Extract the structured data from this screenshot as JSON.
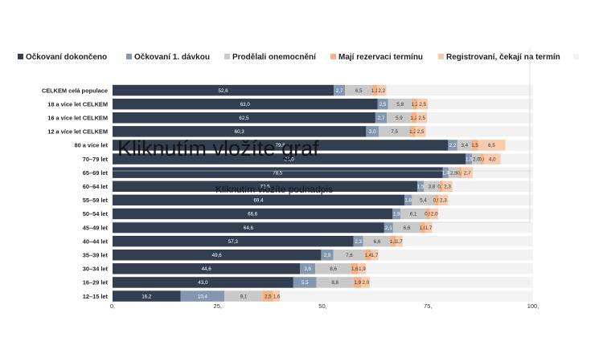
{
  "chart_data": {
    "type": "bar",
    "orientation": "horizontal",
    "stacked": true,
    "categories": [
      "CELKEM celá populace",
      "18 a více let CELKEM",
      "16 a více let CELKEM",
      "12 a více let CELKEM",
      "80 a více let",
      "70–79 let",
      "65–69 let",
      "60–64 let",
      "55–59 let",
      "50–54 let",
      "45–49 let",
      "40–44 let",
      "35–39 let",
      "30–34 let",
      "16–29 let",
      "12–15 let"
    ],
    "series": [
      {
        "name": "Očkovaní dokončeno",
        "color": "#333f50",
        "values": [
          52.6,
          63.0,
          62.5,
          60.3,
          79.8,
          84.0,
          78.5,
          72.5,
          69.4,
          66.6,
          64.6,
          57.3,
          49.6,
          44.6,
          43.0,
          16.2
        ],
        "labels": [
          "52,6",
          "63,0",
          "62,5",
          "60,3",
          "79,8",
          "84,0",
          "78,5",
          "72,5",
          "69,4",
          "66,6",
          "64,6",
          "57,3",
          "49,6",
          "44,6",
          "43,0",
          "16,2"
        ]
      },
      {
        "name": "Očkovaní 1. dávkou",
        "color": "#8497b0",
        "values": [
          2.7,
          2.5,
          2.7,
          3.0,
          2.2,
          1.5,
          1.4,
          1.5,
          1.8,
          1.9,
          2.1,
          2.3,
          2.9,
          3.6,
          5.5,
          10.4
        ],
        "labels": [
          "2,7",
          "2,5",
          "2,7",
          "3,0",
          "2,2",
          "1,5",
          "1,4",
          "1,5",
          "1,8",
          "1,9",
          "2,1",
          "2,3",
          "2,9",
          "3,6",
          "5,5",
          "10,4"
        ]
      },
      {
        "name": "Prodělali onemocnění",
        "color": "#c9c9c9",
        "values": [
          6.5,
          5.8,
          5.9,
          7.5,
          3.4,
          2.0,
          2.5,
          3.8,
          5.4,
          6.1,
          6.6,
          6.6,
          7.6,
          8.6,
          8.8,
          9.1
        ],
        "labels": [
          "6,5",
          "5,8",
          "5,9",
          "7,5",
          "3,4",
          "2,0",
          "2,5",
          "3,8",
          "5,4",
          "6,1",
          "6,6",
          "6,6",
          "7,6",
          "8,6",
          "8,8",
          "9,1"
        ]
      },
      {
        "name": "Mají rezervaci termínu",
        "color": "#f4b183",
        "values": [
          1.1,
          1.2,
          1.2,
          1.2,
          1.5,
          0.8,
          0.6,
          0.7,
          0.9,
          0.9,
          1.0,
          1.1,
          1.4,
          1.6,
          1.9,
          2.5
        ],
        "labels": [
          "1,1",
          "1,2",
          "1,2",
          "1,2",
          "1,5",
          "0,8",
          "0,6",
          "0,7",
          "0,9",
          "0,9",
          "1,0",
          "1,1",
          "1,4",
          "1,6",
          "1,9",
          "2,5"
        ]
      },
      {
        "name": "Registrovaní, čekají na termín",
        "color": "#f8cbad",
        "values": [
          2.2,
          2.5,
          2.5,
          2.5,
          6.5,
          4.0,
          2.7,
          2.3,
          2.3,
          2.0,
          1.7,
          1.7,
          1.7,
          1.9,
          2.0,
          1.6
        ],
        "labels": [
          "2,2",
          "2,5",
          "2,5",
          "2,5",
          "6,5",
          "4,0",
          "2,7",
          "2,3",
          "2,3",
          "2,0",
          "1,7",
          "1,7",
          "1,7",
          "1,9",
          "2,0",
          "1,6"
        ]
      },
      {
        "name": "",
        "color": "#f2f2f2",
        "values": [
          34.9,
          25.0,
          25.2,
          25.5,
          6.6,
          7.7,
          14.3,
          19.2,
          20.2,
          22.5,
          24.0,
          31.0,
          36.8,
          39.7,
          38.8,
          60.2
        ],
        "labels": []
      }
    ],
    "xlim": [
      0,
      100
    ],
    "xticks": [
      0,
      25,
      50,
      75,
      100
    ],
    "xtick_labels": [
      "0,",
      "25,",
      "50,",
      "75,",
      "100,"
    ],
    "legend_position": "top",
    "grid": false,
    "title": "",
    "xlabel": "",
    "ylabel": ""
  },
  "overlay": {
    "big_text": "Kliknutím vložíte graf",
    "small_text": "Kliknutím vložíte podnadpis"
  }
}
